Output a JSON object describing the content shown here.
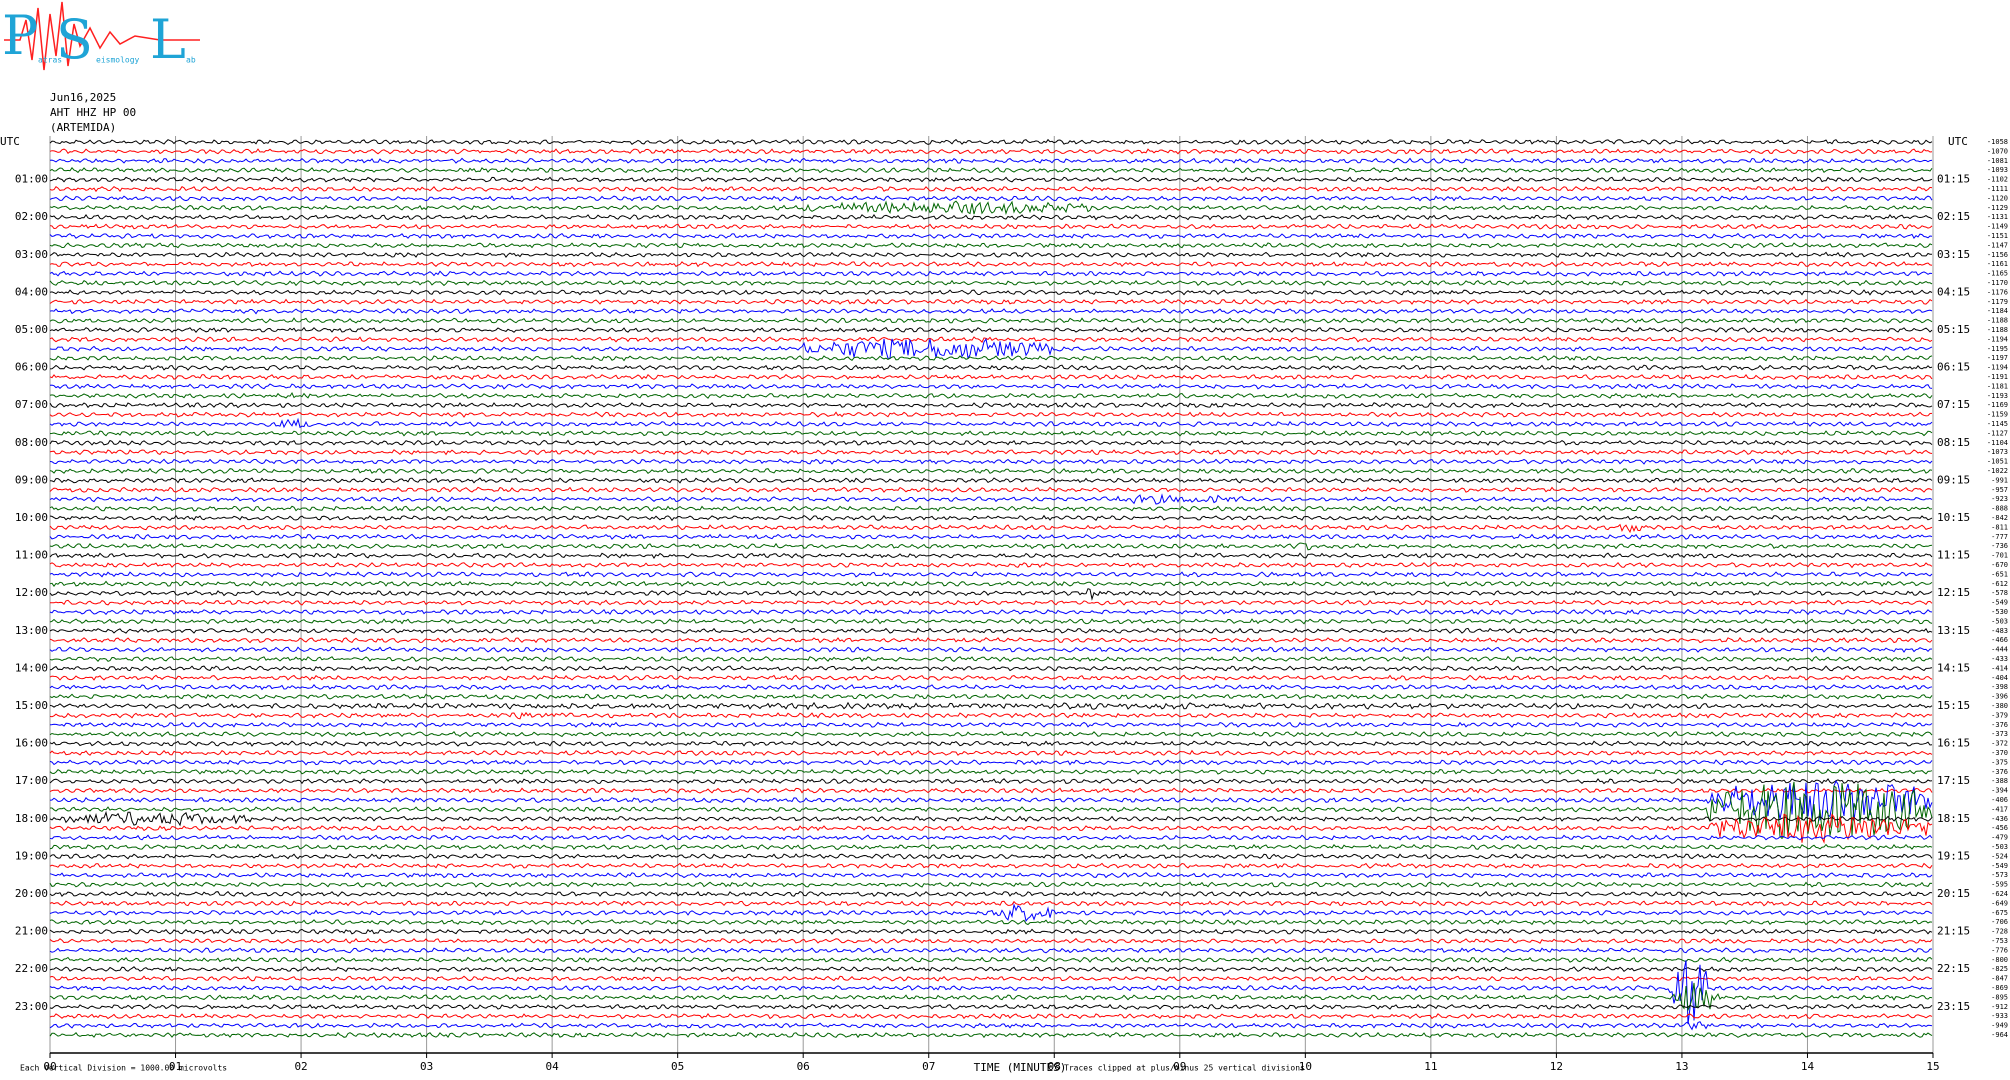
{
  "logo": {
    "big": [
      "P",
      "S",
      "L"
    ],
    "small": [
      "atras",
      "eismology",
      "ab"
    ]
  },
  "header": {
    "date": "Jun16,2025",
    "station": "AHT HHZ HP 00",
    "site": "(ARTEMIDA)"
  },
  "chart_data": {
    "type": "helicorder",
    "utc_label": "UTC",
    "hour_labels_left": [
      "01:00",
      "02:00",
      "03:00",
      "04:00",
      "05:00",
      "06:00",
      "07:00",
      "08:00",
      "09:00",
      "10:00",
      "11:00",
      "12:00",
      "13:00",
      "14:00",
      "15:00",
      "16:00",
      "17:00",
      "18:00",
      "19:00",
      "20:00",
      "21:00",
      "22:00",
      "23:00"
    ],
    "hour_labels_right": [
      "01:15",
      "02:15",
      "03:15",
      "04:15",
      "05:15",
      "06:15",
      "07:15",
      "08:15",
      "09:15",
      "10:15",
      "11:15",
      "12:15",
      "13:15",
      "14:15",
      "15:15",
      "16:15",
      "17:15",
      "18:15",
      "19:15",
      "20:15",
      "21:15",
      "22:15",
      "23:15"
    ],
    "trace_labels": [
      -1058,
      -1070,
      -1081,
      -1093,
      -1102,
      -1111,
      -1120,
      -1129,
      -1131,
      -1149,
      -1151,
      -1147,
      -1156,
      -1161,
      -1165,
      -1170,
      -1176,
      -1179,
      -1184,
      -1188,
      -1188,
      -1194,
      -1195,
      -1197,
      -1194,
      -1191,
      -1181,
      -1193,
      -1169,
      -1159,
      -1145,
      -1127,
      -1104,
      -1073,
      -1051,
      -1022,
      -991,
      -957,
      -923,
      -888,
      -842,
      -811,
      -777,
      -736,
      -701,
      -670,
      -651,
      -612,
      -578,
      -549,
      -530,
      -503,
      -483,
      -466,
      -444,
      -433,
      -414,
      -404,
      -398,
      -396,
      -380,
      -379,
      -376,
      -373,
      -372,
      -370,
      -375,
      -376,
      -388,
      -394,
      -406,
      -417,
      -436,
      -456,
      -479,
      -503,
      -524,
      -549,
      -573,
      -595,
      -624,
      -649,
      -675,
      -706,
      -728,
      -753,
      -776,
      -800,
      -825,
      -847,
      -869,
      -895,
      -912,
      -933,
      -949,
      -964
    ],
    "trace_colors": [
      "#000000",
      "#ff0000",
      "#0000ff",
      "#006400"
    ],
    "xlabel": "TIME (MINUTES)",
    "xlim": [
      0,
      15
    ],
    "xticks": [
      {
        "value": 0,
        "label": "00"
      },
      {
        "value": 1,
        "label": "01"
      },
      {
        "value": 2,
        "label": "02"
      },
      {
        "value": 3,
        "label": "03"
      },
      {
        "value": 4,
        "label": "04"
      },
      {
        "value": 5,
        "label": "05"
      },
      {
        "value": 6,
        "label": "06"
      },
      {
        "value": 7,
        "label": "07"
      },
      {
        "value": 8,
        "label": "08"
      },
      {
        "value": 9,
        "label": "09"
      },
      10,
      11,
      12,
      13,
      14,
      15
    ],
    "grid": true,
    "scale_note": "Each Vertical Division = 1000.00 microvolts",
    "clip_note": "Traces clipped at plus/minus 25 vertical divisions"
  }
}
